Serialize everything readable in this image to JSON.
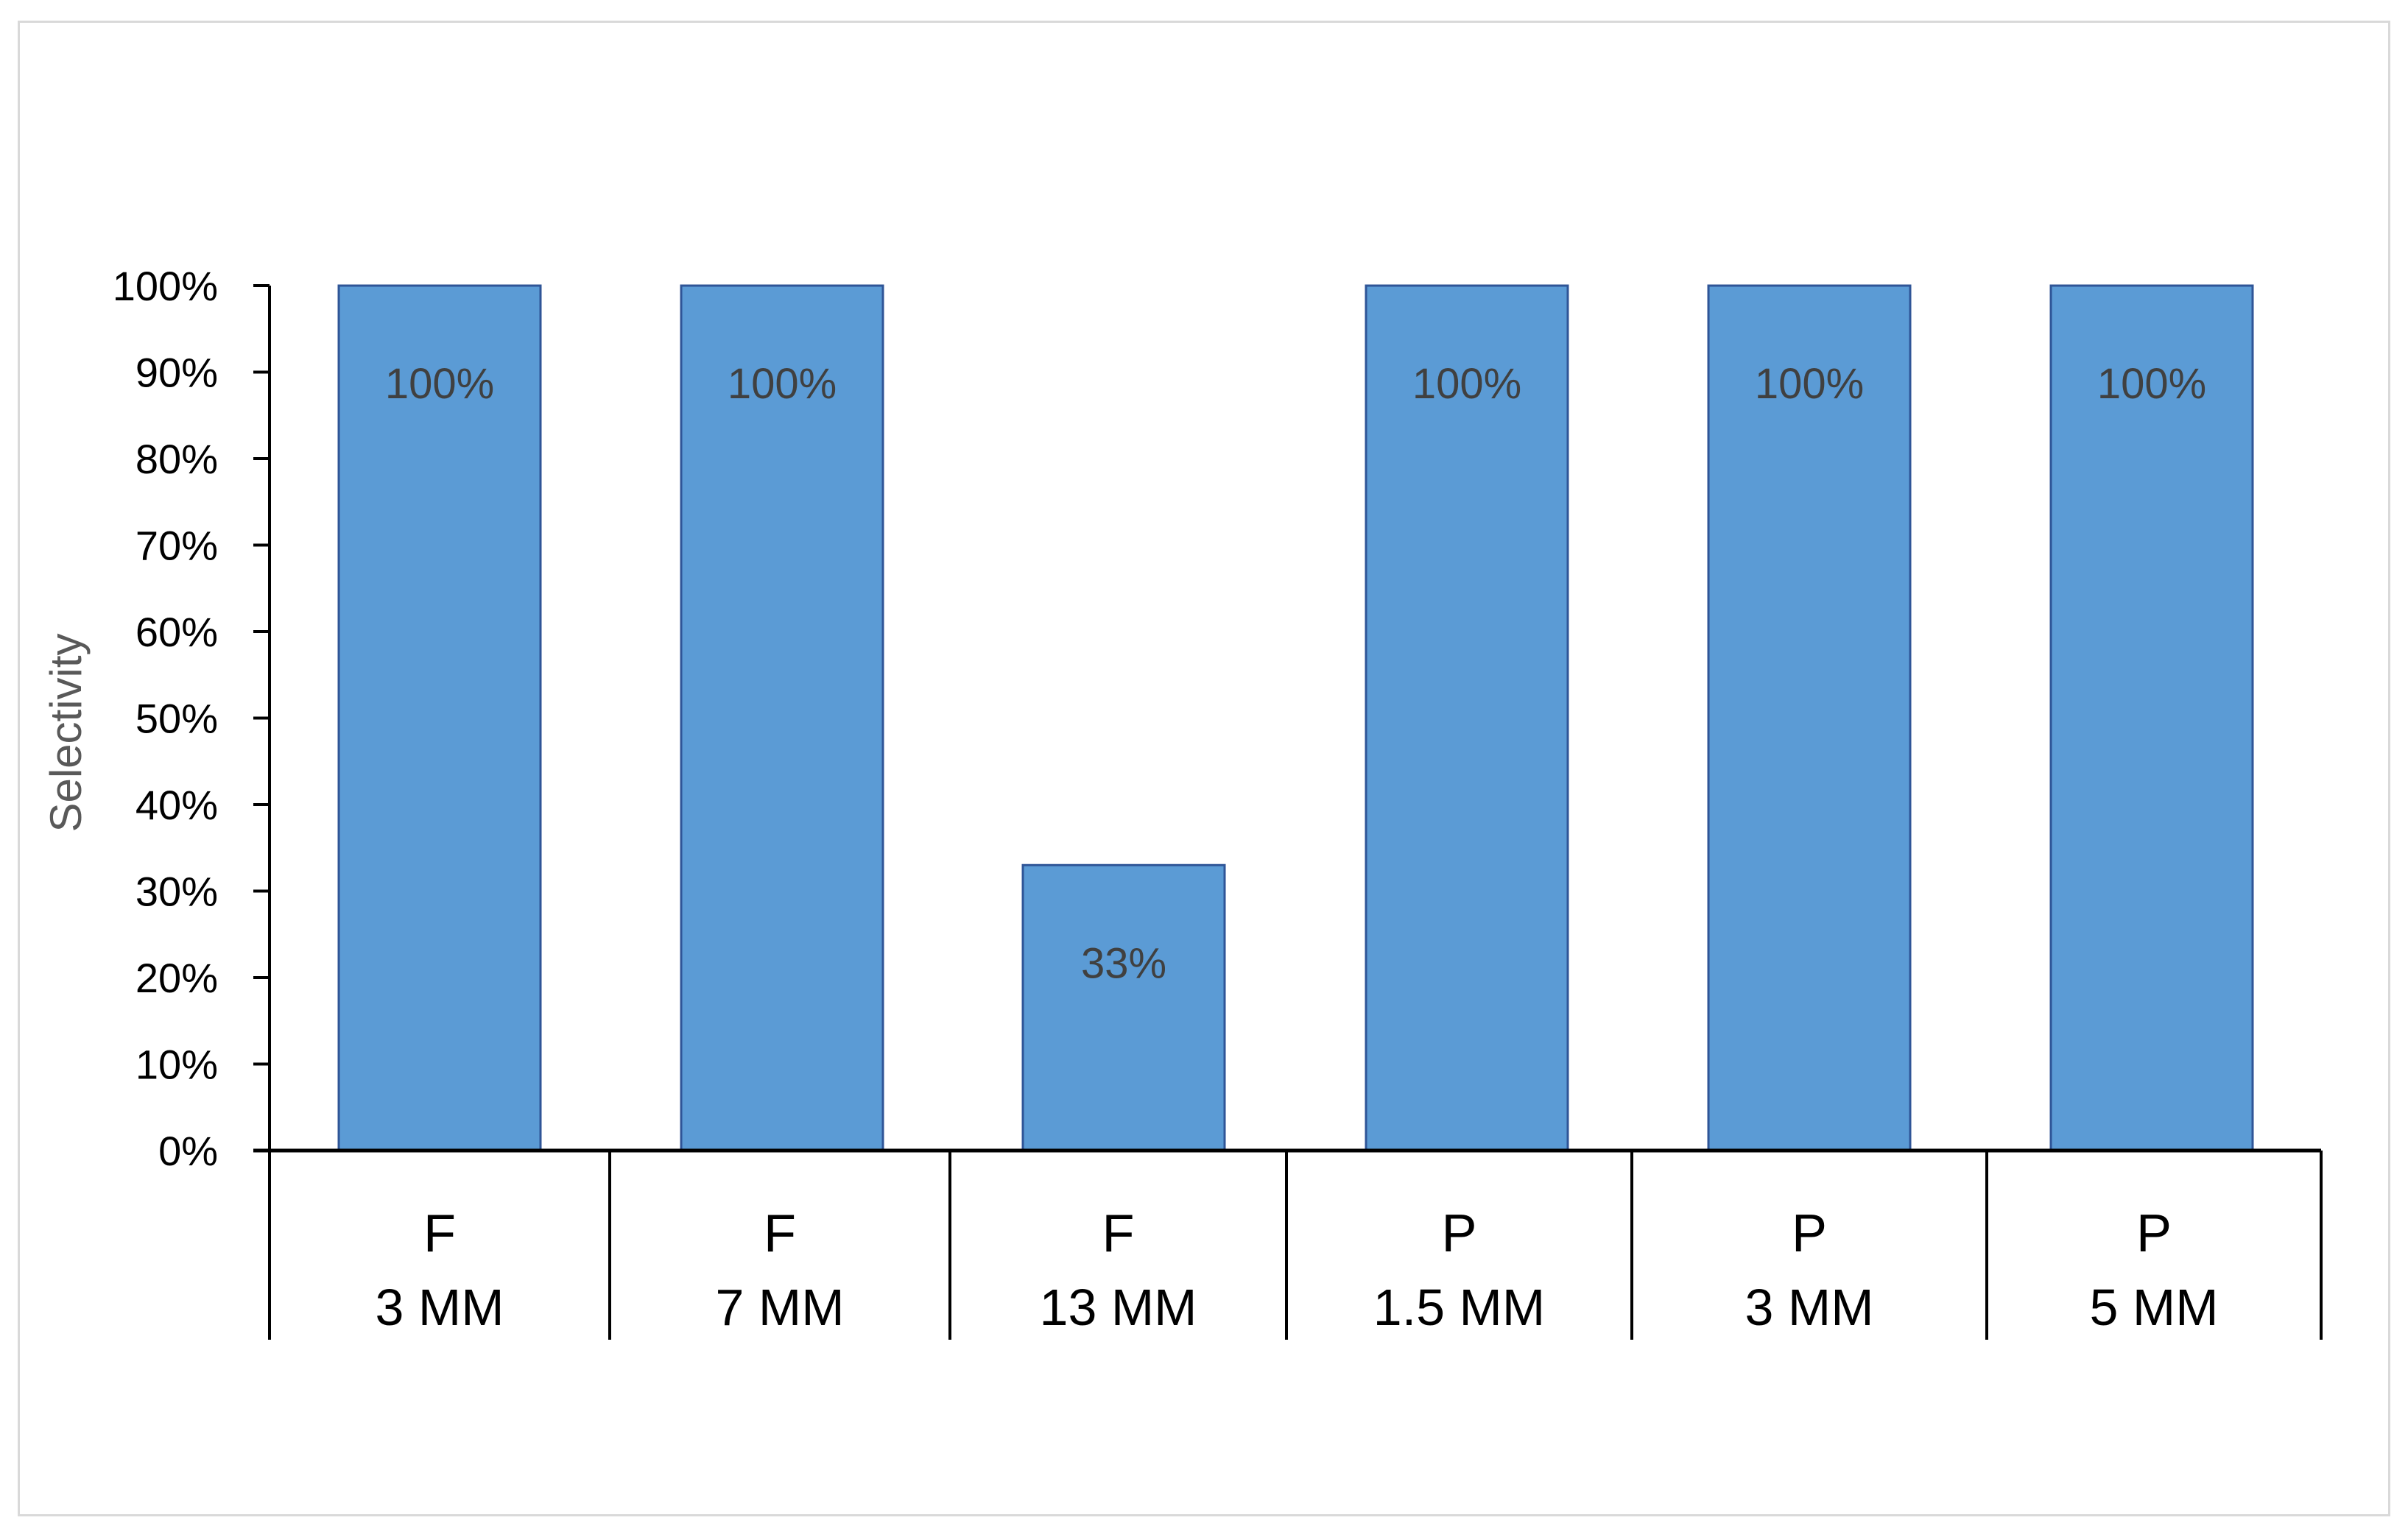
{
  "chart_data": {
    "type": "bar",
    "title": "",
    "xlabel": "",
    "ylabel": "Selectivity",
    "ylim": [
      0,
      1
    ],
    "y_tick_labels": [
      "0%",
      "10%",
      "20%",
      "30%",
      "40%",
      "50%",
      "60%",
      "70%",
      "80%",
      "90%",
      "100%"
    ],
    "categories": [
      {
        "group": "F",
        "size": "3 MM"
      },
      {
        "group": "F",
        "size": "7 MM"
      },
      {
        "group": "F",
        "size": "13 MM"
      },
      {
        "group": "P",
        "size": "1.5 MM"
      },
      {
        "group": "P",
        "size": "3 MM"
      },
      {
        "group": "P",
        "size": "5 MM"
      }
    ],
    "values": [
      1.0,
      1.0,
      0.33,
      1.0,
      1.0,
      1.0
    ],
    "data_labels": [
      "100%",
      "100%",
      "33%",
      "100%",
      "100%",
      "100%"
    ],
    "bar_color": "#5b9bd5",
    "bar_edge_color": "#2f5597",
    "grid": false,
    "legend": "none"
  }
}
